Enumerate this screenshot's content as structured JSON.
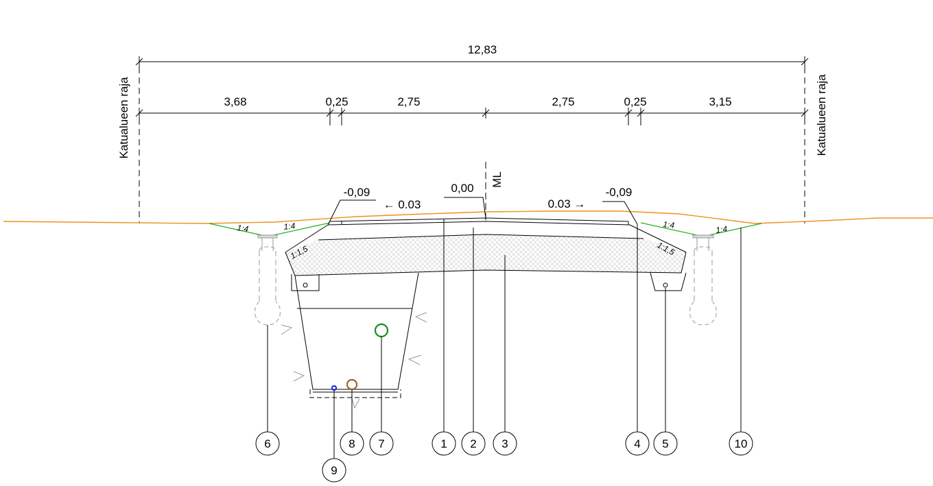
{
  "dimensions": {
    "total": "12,83",
    "d1": "3,68",
    "d2": "0,25",
    "d3": "2,75",
    "d4": "2,75",
    "d5": "0,25",
    "d6": "3,15"
  },
  "boundary": {
    "left": "Katualueen raja",
    "right": "Katualueen raja"
  },
  "centerline": "ML",
  "elevations": {
    "center": "0,00",
    "left_edge": "-0,09",
    "right_edge": "-0,09"
  },
  "slopes": {
    "left": "← 0.03",
    "right": "0.03 →"
  },
  "ratios": {
    "ditch_left_outer": "1:4",
    "ditch_left_inner": "1:4",
    "ditch_right_inner": "1:4",
    "ditch_right_outer": "1:4",
    "embankment_left": "1:1,5",
    "embankment_right": "1:1,5"
  },
  "callouts": {
    "c1": "1",
    "c2": "2",
    "c3": "3",
    "c4": "4",
    "c5": "5",
    "c6": "6",
    "c7": "7",
    "c8": "8",
    "c9": "9",
    "c10": "10"
  },
  "colors": {
    "ground_line": "#f0901e",
    "ditch_slope": "#1fb31f",
    "pipe_green": "#1a8c1a",
    "pipe_brown": "#a0651a",
    "pipe_blue": "#1a1ae6"
  }
}
